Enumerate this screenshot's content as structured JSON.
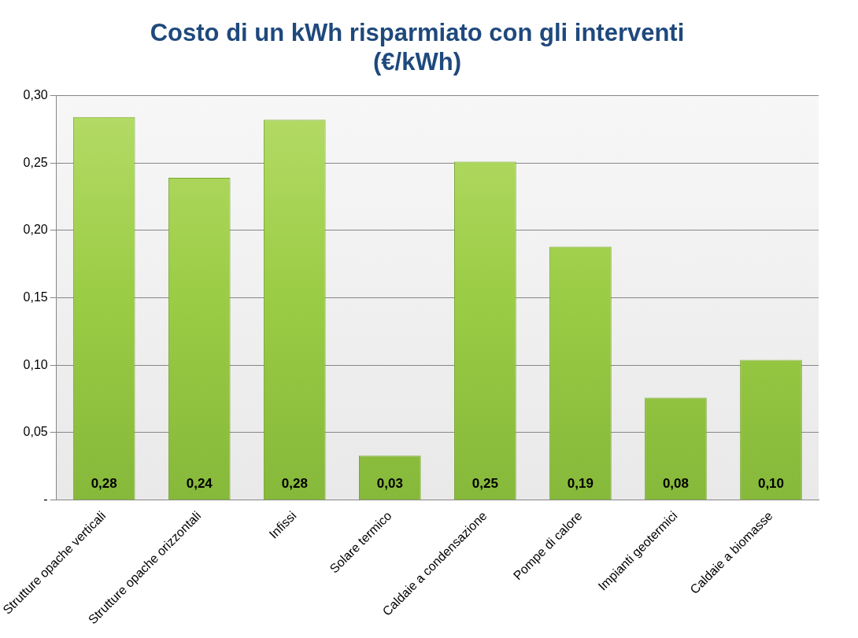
{
  "chart_data": {
    "type": "bar",
    "title": [
      "Costo di un kWh risparmiato con gli interventi",
      "(€/kWh)"
    ],
    "categories": [
      "Strutture opache verticali",
      "Strutture opache orizzontali",
      "Infissi",
      "Solare termico",
      "Caldaie a condensazione",
      "Pompe di calore",
      "Impianti geotermici",
      "Caldaie a biomasse"
    ],
    "values": [
      0.284,
      0.239,
      0.282,
      0.033,
      0.251,
      0.188,
      0.076,
      0.104
    ],
    "value_labels": [
      "0,28",
      "0,24",
      "0,28",
      "0,03",
      "0,25",
      "0,19",
      "0,08",
      "0,10"
    ],
    "data_labels": true,
    "color": "#9bcc45",
    "ylim": [
      0,
      0.3
    ],
    "yticks": [
      {
        "value": 0,
        "label": "-"
      },
      {
        "value": 0.05,
        "label": "0,05"
      },
      {
        "value": 0.1,
        "label": "0,10"
      },
      {
        "value": 0.15,
        "label": "0,15"
      },
      {
        "value": 0.2,
        "label": "0,20"
      },
      {
        "value": 0.25,
        "label": "0,25"
      },
      {
        "value": 0.3,
        "label": "0,30"
      }
    ],
    "grid": true
  }
}
